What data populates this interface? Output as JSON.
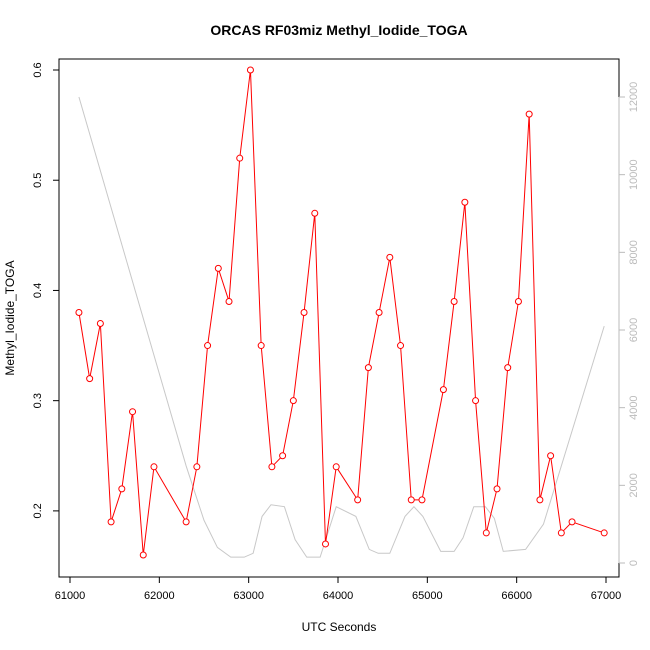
{
  "chart_data": {
    "type": "line",
    "title": "ORCAS RF03miz Methyl_Iodide_TOGA",
    "xlabel": "UTC Seconds",
    "ylabel": "Methyl_Iodide_TOGA",
    "xlim": [
      61000,
      67000
    ],
    "ylim": [
      0.15,
      0.6
    ],
    "y2lim": [
      0,
      12000
    ],
    "x_ticks": [
      "61000",
      "62000",
      "63000",
      "64000",
      "65000",
      "66000",
      "67000"
    ],
    "y_ticks": [
      "0.2",
      "0.3",
      "0.4",
      "0.5",
      "0.6"
    ],
    "y2_ticks": [
      "0",
      "2000",
      "4000",
      "6000",
      "8000",
      "10000",
      "12000"
    ],
    "grid": false,
    "series": [
      {
        "role": "primary",
        "axis": "left",
        "color": "#ff0000",
        "marker": "circle",
        "x": [
          61100,
          61220,
          61340,
          61460,
          61580,
          61700,
          61820,
          61940,
          62300,
          62420,
          62540,
          62660,
          62780,
          62900,
          63020,
          63140,
          63260,
          63380,
          63500,
          63620,
          63740,
          63860,
          63980,
          64220,
          64340,
          64460,
          64580,
          64700,
          64820,
          64940,
          65180,
          65300,
          65420,
          65540,
          65660,
          65780,
          65900,
          66020,
          66140,
          66260,
          66380,
          66500,
          66620,
          66980
        ],
        "y": [
          0.38,
          0.32,
          0.37,
          0.19,
          0.22,
          0.29,
          0.16,
          0.24,
          0.19,
          0.24,
          0.35,
          0.42,
          0.39,
          0.52,
          0.6,
          0.35,
          0.24,
          0.25,
          0.3,
          0.38,
          0.47,
          0.17,
          0.24,
          0.21,
          0.33,
          0.38,
          0.43,
          0.35,
          0.21,
          0.21,
          0.31,
          0.39,
          0.48,
          0.3,
          0.18,
          0.22,
          0.33,
          0.39,
          0.56,
          0.21,
          0.25,
          0.18,
          0.19,
          0.18
        ]
      },
      {
        "role": "altitude",
        "axis": "right",
        "color": "#c8c8c8",
        "marker": "none",
        "x": [
          61100,
          62300,
          62500,
          62650,
          62800,
          62950,
          63050,
          63150,
          63250,
          63400,
          63520,
          63650,
          63800,
          63980,
          64200,
          64350,
          64450,
          64580,
          64750,
          64850,
          64950,
          65150,
          65300,
          65400,
          65520,
          65650,
          65750,
          65850,
          66100,
          66300,
          66980
        ],
        "y": [
          12000,
          2500,
          1100,
          400,
          150,
          150,
          250,
          1200,
          1500,
          1450,
          600,
          150,
          150,
          1450,
          1200,
          350,
          250,
          250,
          1200,
          1450,
          1200,
          300,
          300,
          650,
          1450,
          1450,
          1150,
          300,
          350,
          1000,
          6100
        ]
      }
    ]
  }
}
